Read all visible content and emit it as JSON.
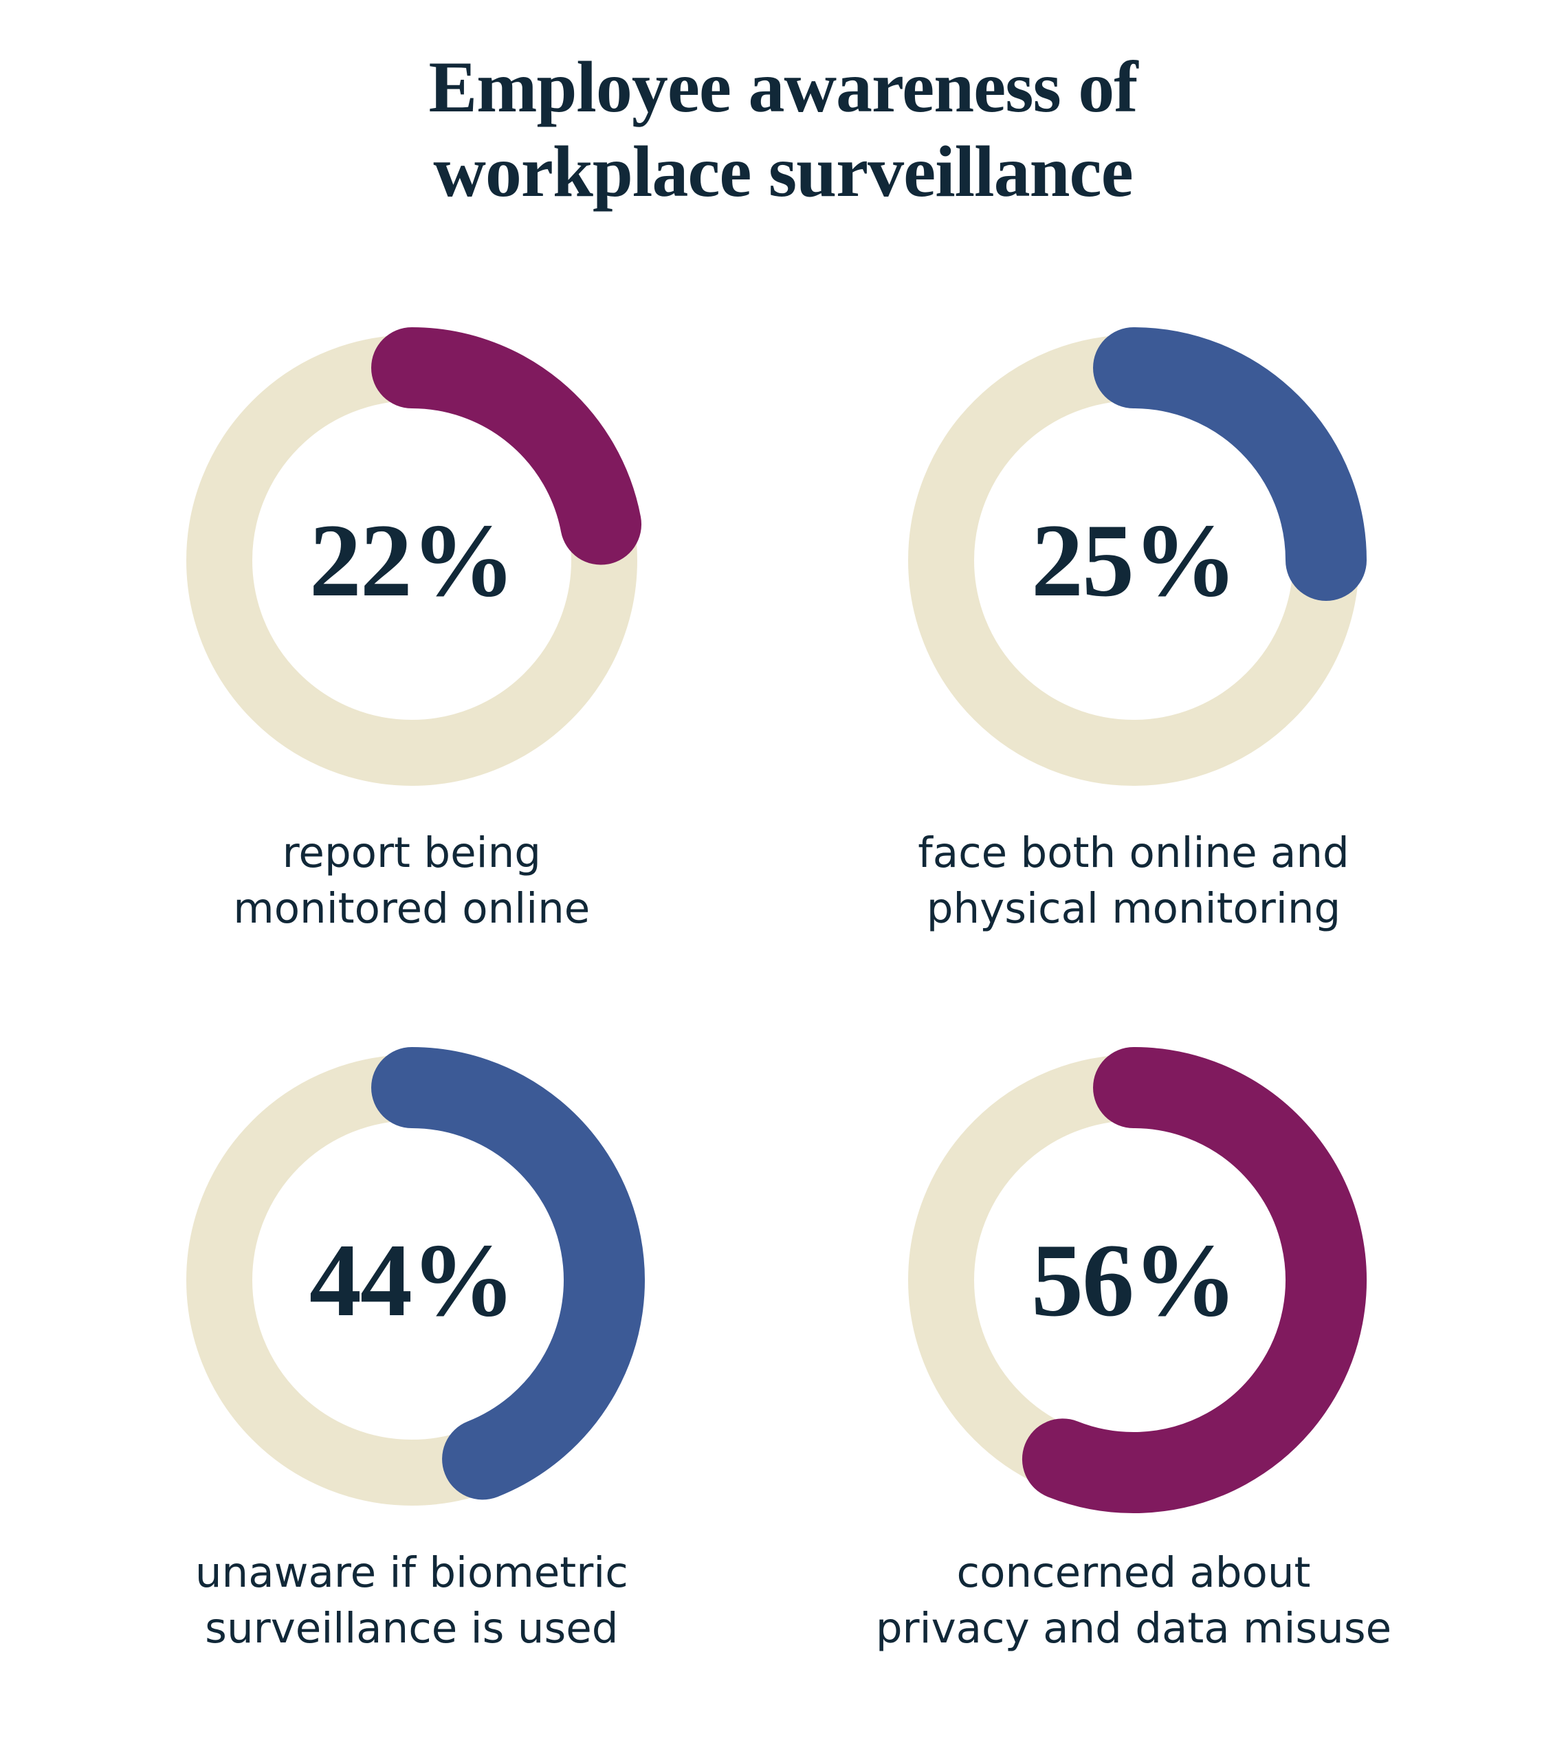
{
  "title": "Employee awareness of workplace surveillance",
  "title_lines": [
    "Employee awareness of",
    "workplace surveillance"
  ],
  "colors": {
    "background": "#FFFFFF",
    "track": "#ECE6CE",
    "magenta": "#801A5E",
    "blue": "#3C5A96",
    "text_navy": "#112838"
  },
  "chart_data": {
    "type": "donut-multiple",
    "title": "Employee awareness of workplace surveillance",
    "arc_start": "12 o'clock, clockwise, rounded caps",
    "items": [
      {
        "value": 22,
        "percent_label": "22%",
        "label": "report being monitored online",
        "label_lines": [
          "report being",
          "monitored online"
        ],
        "color": "#801A5E",
        "color_name": "magenta"
      },
      {
        "value": 25,
        "percent_label": "25%",
        "label": "face both online and physical monitoring",
        "label_lines": [
          "face both online and",
          "physical monitoring"
        ],
        "color": "#3C5A96",
        "color_name": "blue"
      },
      {
        "value": 44,
        "percent_label": "44%",
        "label": "unaware if biometric surveillance is used",
        "label_lines": [
          "unaware if biometric",
          "surveillance is used"
        ],
        "color": "#3C5A96",
        "color_name": "blue"
      },
      {
        "value": 56,
        "percent_label": "56%",
        "label": "concerned about privacy and data misuse",
        "label_lines": [
          "concerned about",
          "privacy and data misuse"
        ],
        "color": "#801A5E",
        "color_name": "magenta"
      }
    ]
  }
}
